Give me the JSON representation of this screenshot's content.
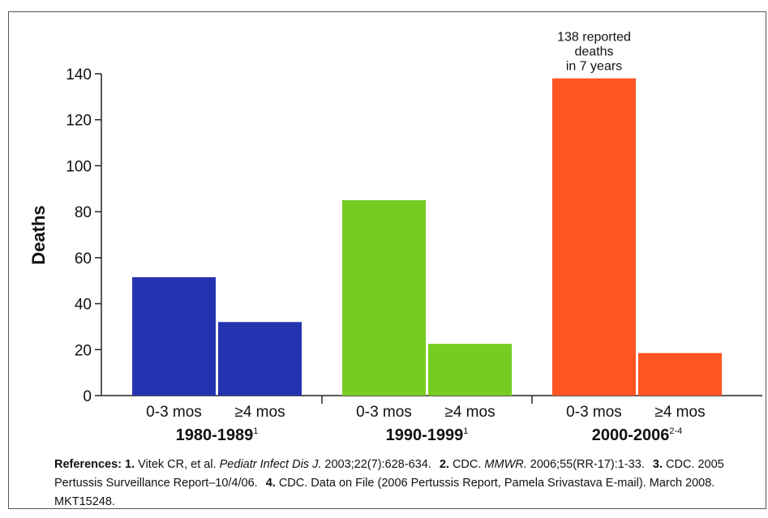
{
  "chart_data": {
    "type": "bar",
    "y_label": "Deaths",
    "subcategories": [
      "0-3 mos",
      "≥4 mos"
    ],
    "groups": [
      {
        "name": "1980-1989",
        "superscript": "1",
        "color": "#2434b0",
        "values": [
          51.5,
          32
        ]
      },
      {
        "name": "1990-1999",
        "superscript": "1",
        "color": "#77cc22",
        "values": [
          85,
          22.5
        ]
      },
      {
        "name": "2000-2006",
        "superscript": "2-4",
        "color": "#ff5522",
        "values": [
          138,
          18.5
        ]
      }
    ],
    "annotation": [
      "138 reported",
      "deaths",
      "in 7 years"
    ],
    "ylim": [
      0,
      140
    ],
    "yticks": [
      0,
      20,
      40,
      60,
      80,
      100,
      120,
      140
    ]
  },
  "references": {
    "label": "References:",
    "items": [
      {
        "number": "1.",
        "parts": [
          {
            "text": " Vitek CR, et al. "
          },
          {
            "text": "Pediatr Infect Dis J.",
            "italic": true
          },
          {
            "text": " 2003;22(7):628-634."
          }
        ]
      },
      {
        "number": "2.",
        "parts": [
          {
            "text": " CDC. "
          },
          {
            "text": "MMWR.",
            "italic": true
          },
          {
            "text": " 2006;55(RR-17):1-33."
          }
        ]
      },
      {
        "number": "3.",
        "parts": [
          {
            "text": " CDC. 2005 Pertussis Surveillance Report–10/4/06."
          }
        ]
      },
      {
        "number": "4.",
        "parts": [
          {
            "text": " CDC. Data on File (2006 Pertussis Report, Pamela Srivastava E-mail). March 2008. MKT15248."
          }
        ]
      }
    ]
  }
}
